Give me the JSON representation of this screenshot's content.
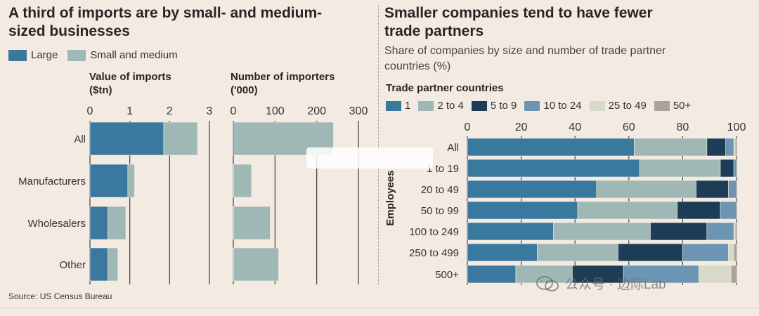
{
  "left": {
    "title_line1": "A third of imports are by small- and medium-",
    "title_line2": "sized businesses",
    "legend": [
      {
        "label": "Large",
        "color": "#3a78a0"
      },
      {
        "label": "Small and medium",
        "color": "#9fb8b5"
      }
    ],
    "source": "Source: US Census Bureau"
  },
  "right": {
    "title_line1": "Smaller companies tend to have fewer",
    "title_line2": "trade partners",
    "subtitle_line1": "Share of companies by size and number of trade partner",
    "subtitle_line2": "countries (%)",
    "legend_title": "Trade partner countries",
    "legend": [
      {
        "label": "1",
        "color": "#3a78a0"
      },
      {
        "label": "2 to 4",
        "color": "#9fb8b5"
      },
      {
        "label": "5 to 9",
        "color": "#1d3d57"
      },
      {
        "label": "10 to 24",
        "color": "#6b95b3"
      },
      {
        "label": "25 to 49",
        "color": "#d8d9c7"
      },
      {
        "label": "50+",
        "color": "#aaa39c"
      }
    ]
  },
  "watermark": "公众号 · 边际Lab",
  "chart_data": [
    {
      "type": "bar",
      "orientation": "horizontal",
      "stacked": true,
      "title": "Value of imports ($tn)",
      "title_line1": "Value of imports",
      "title_line2": "($tn)",
      "categories": [
        "All",
        "Manufacturers",
        "Wholesalers",
        "Other"
      ],
      "series": [
        {
          "name": "Large",
          "color": "#3a78a0",
          "values": [
            1.85,
            0.95,
            0.45,
            0.45
          ]
        },
        {
          "name": "Small and medium",
          "color": "#9fb8b5",
          "values": [
            0.85,
            0.17,
            0.45,
            0.25
          ]
        }
      ],
      "xlim": [
        0,
        3
      ],
      "xticks": [
        0,
        1,
        2,
        3
      ],
      "grid": true
    },
    {
      "type": "bar",
      "orientation": "horizontal",
      "stacked": true,
      "title": "Number of importers ('000)",
      "title_line1": "Number of importers",
      "title_line2": "('000)",
      "categories": [
        "All",
        "Manufacturers",
        "Wholesalers",
        "Other"
      ],
      "series": [
        {
          "name": "Large",
          "color": "#3a78a0",
          "values": [
            3,
            0.5,
            0.5,
            0.5
          ]
        },
        {
          "name": "Small and medium",
          "color": "#9fb8b5",
          "values": [
            237,
            43,
            88,
            108
          ]
        }
      ],
      "xlim": [
        0,
        300
      ],
      "xticks": [
        0,
        100,
        200,
        300
      ],
      "grid": true
    },
    {
      "type": "bar",
      "orientation": "horizontal",
      "stacked": true,
      "title": "Share of companies by size and number of trade partner countries (%)",
      "ylabel": "Employees",
      "categories": [
        "All",
        "1 to 19",
        "20 to 49",
        "50 to 99",
        "100 to 249",
        "250 to 499",
        "500+"
      ],
      "series": [
        {
          "name": "1",
          "color": "#3a78a0",
          "values": [
            62,
            64,
            48,
            41,
            32,
            26,
            18
          ]
        },
        {
          "name": "2 to 4",
          "color": "#9fb8b5",
          "values": [
            27,
            30,
            37,
            37,
            36,
            30,
            21
          ]
        },
        {
          "name": "5 to 9",
          "color": "#1d3d57",
          "values": [
            7,
            5,
            12,
            16,
            21,
            24,
            19
          ]
        },
        {
          "name": "10 to 24",
          "color": "#6b95b3",
          "values": [
            3,
            1,
            3,
            6,
            10,
            17,
            28
          ]
        },
        {
          "name": "25 to 49",
          "color": "#d8d9c7",
          "values": [
            0.5,
            0,
            0,
            0,
            0.5,
            2,
            12
          ]
        },
        {
          "name": "50+",
          "color": "#aaa39c",
          "values": [
            0.5,
            0,
            0,
            0,
            0.5,
            1,
            2
          ]
        }
      ],
      "xlim": [
        0,
        100
      ],
      "xticks": [
        0,
        20,
        40,
        60,
        80,
        100
      ],
      "grid": true
    }
  ]
}
